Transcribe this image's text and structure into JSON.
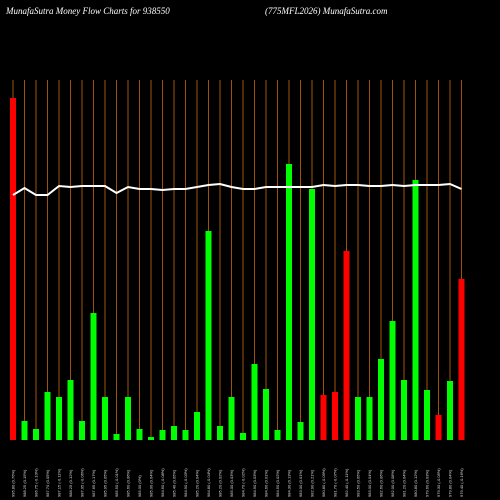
{
  "chart_data": {
    "type": "bar",
    "title": "MunafaSutra  Money Flow  Charts for 938550",
    "subtitle": "(775MFL2026) MunafaSutra.com",
    "categories": [
      "995.80 (0.76%)",
      "988.25 (0.15%)",
      "986.75 (-0.10%)",
      "987.70 (0.05%)",
      "987.15 (-0.11%)",
      "988.25 (0.12%)",
      "987.05 (-0.06%)",
      "987.65 (0.17%)",
      "985.95 (0.05%)",
      "985.50 (-0.01%)",
      "985.60 (0.06%)",
      "985.00 (0%)",
      "985.00 (0.04%)",
      "984.60 (-0.08%)",
      "985.40 (0.05%)",
      "984.90 (-0.03%)",
      "985.20 (0.04%)",
      "984.80 (-0.04%)",
      "985.20 (0.02%)",
      "985.00 (0.03%)",
      "984.70 (-0.02%)",
      "984.90 (0.03%)",
      "984.60 (0.01%)",
      "984.50 (0.02%)",
      "984.30 (0.13%)",
      "983.00 (0.01%)",
      "982.90 (0.21%)",
      "980.80 (-0.09%)",
      "981.70 (-0.07%)",
      "982.40 (-0.11%)",
      "983.50 (0.05%)",
      "983.00 (0.04%)",
      "982.60 (0.06%)",
      "982.00 (0.08%)",
      "981.20 (0.04%)",
      "980.80 (0.12%)",
      "979.60 (0.03%)",
      "979.30 (-0.05%)",
      "979.80 (0.04%)",
      "979.40 (-0.16%)"
    ],
    "series": [
      {
        "values": [
          342,
          19,
          11,
          48,
          43,
          60,
          19,
          127,
          43,
          6,
          43,
          11,
          3,
          10,
          14,
          10,
          28,
          209,
          14,
          43,
          7,
          76,
          51,
          10,
          276,
          18,
          251,
          45,
          48,
          189,
          43,
          43,
          81,
          119,
          60,
          260,
          50,
          25,
          59,
          161
        ],
        "colors": [
          "#ff0000",
          "#00ff00",
          "#00ff00",
          "#00ff00",
          "#00ff00",
          "#00ff00",
          "#00ff00",
          "#00ff00",
          "#00ff00",
          "#00ff00",
          "#00ff00",
          "#00ff00",
          "#00ff00",
          "#00ff00",
          "#00ff00",
          "#00ff00",
          "#00ff00",
          "#00ff00",
          "#00ff00",
          "#00ff00",
          "#00ff00",
          "#00ff00",
          "#00ff00",
          "#00ff00",
          "#00ff00",
          "#00ff00",
          "#00ff00",
          "#ff0000",
          "#ff0000",
          "#ff0000",
          "#00ff00",
          "#00ff00",
          "#00ff00",
          "#00ff00",
          "#00ff00",
          "#00ff00",
          "#00ff00",
          "#ff0000",
          "#00ff00",
          "#ff0000"
        ]
      },
      {
        "type": "line",
        "color": "#ffffff",
        "values": [
          245,
          252,
          245,
          245,
          254,
          253,
          254,
          254,
          254,
          247,
          253,
          251,
          251,
          250,
          251,
          251,
          253,
          255,
          256,
          253,
          251,
          251,
          253,
          253,
          253,
          253,
          253,
          255,
          254,
          255,
          255,
          254,
          254,
          255,
          254,
          255,
          255,
          255,
          256,
          251
        ]
      }
    ],
    "ylim": [
      0,
      345
    ],
    "grid": true,
    "grid_color": "#a0520a"
  }
}
